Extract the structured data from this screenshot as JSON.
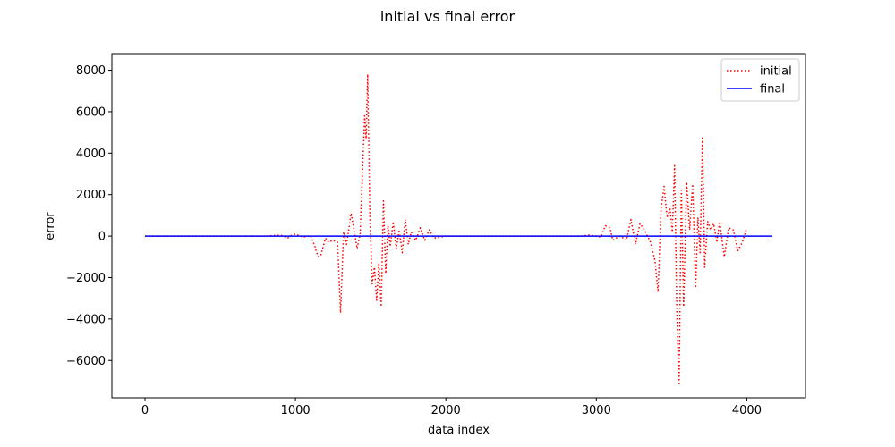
{
  "chart_data": {
    "type": "line",
    "title": "initial vs final error",
    "xlabel": "data index",
    "ylabel": "error",
    "xlim": [
      -220,
      4390
    ],
    "ylim": [
      -7800,
      8800
    ],
    "xticks": [
      0,
      1000,
      2000,
      3000,
      4000
    ],
    "yticks": [
      -6000,
      -4000,
      -2000,
      0,
      2000,
      4000,
      6000,
      8000
    ],
    "ytick_labels": [
      "−6000",
      "−4000",
      "−2000",
      "0",
      "2000",
      "4000",
      "6000",
      "8000"
    ],
    "legend_position": "top-right",
    "grid": false,
    "series": [
      {
        "name": "initial",
        "color": "#ff0000",
        "linestyle": "dotted",
        "x": [
          0,
          600,
          800,
          900,
          950,
          980,
          1000,
          1050,
          1100,
          1130,
          1150,
          1170,
          1200,
          1220,
          1250,
          1280,
          1300,
          1320,
          1340,
          1370,
          1390,
          1410,
          1430,
          1460,
          1470,
          1480,
          1495,
          1510,
          1525,
          1540,
          1555,
          1570,
          1585,
          1600,
          1615,
          1630,
          1650,
          1670,
          1690,
          1710,
          1730,
          1750,
          1770,
          1800,
          1830,
          1860,
          1890,
          1920,
          2000,
          2900,
          2950,
          3000,
          3030,
          3060,
          3090,
          3110,
          3130,
          3160,
          3200,
          3230,
          3260,
          3290,
          3320,
          3360,
          3390,
          3410,
          3430,
          3450,
          3470,
          3490,
          3505,
          3520,
          3535,
          3550,
          3565,
          3580,
          3600,
          3620,
          3640,
          3660,
          3675,
          3690,
          3705,
          3720,
          3740,
          3760,
          3780,
          3800,
          3820,
          3850,
          3880,
          3910,
          3940,
          3970,
          4000
        ],
        "y": [
          0,
          0,
          0,
          50,
          -80,
          60,
          100,
          -50,
          20,
          -500,
          -1000,
          -900,
          -100,
          -300,
          -200,
          -300,
          -3700,
          200,
          -400,
          1100,
          300,
          -600,
          100,
          5800,
          4700,
          7800,
          1000,
          -2300,
          -1500,
          -3100,
          -1300,
          -3400,
          1700,
          -1800,
          500,
          -500,
          700,
          -600,
          300,
          -800,
          800,
          -400,
          200,
          -200,
          400,
          -200,
          300,
          -100,
          0,
          0,
          50,
          0,
          -50,
          500,
          400,
          -200,
          -100,
          0,
          -200,
          800,
          -400,
          600,
          300,
          -300,
          -1200,
          -2700,
          1300,
          2400,
          900,
          1300,
          200,
          3400,
          -3700,
          -7100,
          2300,
          -3400,
          2600,
          300,
          2500,
          -2500,
          900,
          -800,
          4800,
          -1500,
          700,
          300,
          600,
          -300,
          700,
          -1000,
          400,
          300,
          -700,
          -300,
          400
        ],
        "note": ""
      },
      {
        "name": "final",
        "color": "#0000ff",
        "linestyle": "solid",
        "x": [
          0,
          4170
        ],
        "y": [
          0,
          0
        ]
      }
    ]
  }
}
